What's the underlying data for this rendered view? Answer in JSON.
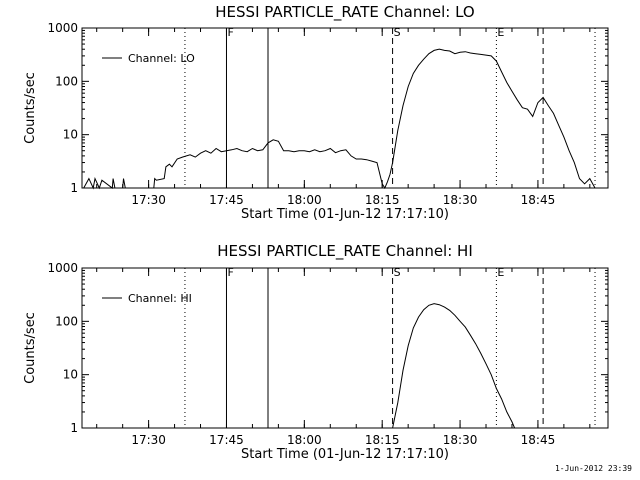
{
  "chart_data": [
    {
      "type": "line",
      "title": "HESSI PARTICLE_RATE Channel: LO",
      "xlabel": "Start Time (01-Jun-12 17:17:10)",
      "ylabel": "Counts/sec",
      "yscale": "log",
      "ylim": [
        1,
        1000
      ],
      "xlim": [
        "17:17:10",
        "18:58:30"
      ],
      "x_ticks": [
        "17:30",
        "17:45",
        "18:00",
        "18:15",
        "18:30",
        "18:45"
      ],
      "y_ticks": [
        "1",
        "10",
        "100",
        "1000"
      ],
      "legend": {
        "placement": "top-left",
        "entries": [
          "Channel: LO"
        ]
      },
      "markers": [
        {
          "label": "",
          "time": "17:37:00",
          "style": "dotted"
        },
        {
          "label": "F",
          "time": "17:45:00",
          "style": "solid"
        },
        {
          "label": "",
          "time": "17:53:00",
          "style": "solid"
        },
        {
          "label": "S",
          "time": "18:17:00",
          "style": "dashed"
        },
        {
          "label": "E",
          "time": "18:37:00",
          "style": "dotted"
        },
        {
          "label": "",
          "time": "18:46:00",
          "style": "dashed"
        },
        {
          "label": "",
          "time": "18:56:00",
          "style": "dotted"
        }
      ],
      "series": [
        {
          "name": "Channel: LO",
          "x": [
            "17:17:30",
            "17:18:30",
            "17:19:20",
            "17:19:40",
            "17:20:30",
            "17:21:00",
            "17:23:00",
            "17:23:10",
            "17:23:30",
            "17:25:00",
            "17:25:10",
            "17:25:30",
            "17:31:00",
            "17:31:10",
            "17:31:30",
            "17:33:00",
            "17:33:20",
            "17:34:00",
            "17:34:30",
            "17:35:30",
            "17:36:30",
            "17:38:00",
            "17:39:00",
            "17:40:00",
            "17:41:00",
            "17:42:00",
            "17:43:00",
            "17:44:00",
            "17:45:00",
            "17:46:00",
            "17:47:00",
            "17:48:00",
            "17:49:00",
            "17:50:00",
            "17:51:00",
            "17:52:00",
            "17:53:00",
            "17:54:00",
            "17:55:00",
            "17:56:00",
            "17:57:00",
            "17:58:00",
            "17:59:00",
            "18:00:00",
            "18:01:00",
            "18:02:00",
            "18:03:00",
            "18:04:00",
            "18:05:00",
            "18:06:00",
            "18:07:00",
            "18:08:00",
            "18:09:00",
            "18:10:00",
            "18:11:00",
            "18:12:00",
            "18:13:00",
            "18:14:00",
            "18:15:00",
            "18:15:30",
            "18:16:00",
            "18:16:30",
            "18:17:00",
            "18:18:00",
            "18:19:00",
            "18:20:00",
            "18:21:00",
            "18:22:00",
            "18:23:00",
            "18:24:00",
            "18:25:00",
            "18:26:00",
            "18:27:00",
            "18:28:00",
            "18:29:00",
            "18:30:00",
            "18:31:00",
            "18:32:00",
            "18:33:00",
            "18:34:00",
            "18:35:00",
            "18:36:00",
            "18:37:00",
            "18:38:00",
            "18:39:00",
            "18:40:00",
            "18:41:00",
            "18:42:00",
            "18:43:00",
            "18:44:00",
            "18:45:00",
            "18:46:00",
            "18:47:00",
            "18:48:00",
            "18:49:00",
            "18:50:00",
            "18:51:00",
            "18:52:00",
            "18:53:00",
            "18:54:00",
            "18:55:00",
            "18:56:00",
            "18:57:00"
          ],
          "y": [
            1,
            1.5,
            1,
            1.5,
            1,
            1.4,
            1,
            1.5,
            1,
            1,
            1.5,
            1,
            1,
            1.5,
            1.4,
            1.5,
            2.5,
            2.8,
            2.5,
            3.5,
            3.8,
            4.2,
            3.8,
            4.5,
            5,
            4.5,
            5.5,
            4.8,
            5,
            5.2,
            5.5,
            5,
            4.8,
            5.5,
            5,
            5.2,
            7,
            8,
            7.5,
            5,
            5,
            4.8,
            5,
            5,
            4.8,
            5.2,
            4.8,
            5,
            5.5,
            4.6,
            5,
            5.2,
            4,
            3.5,
            3.5,
            3.4,
            3.2,
            3,
            1.2,
            1,
            1.3,
            1.8,
            3,
            12,
            35,
            80,
            140,
            200,
            260,
            330,
            380,
            400,
            380,
            370,
            330,
            350,
            360,
            340,
            330,
            320,
            310,
            300,
            240,
            150,
            95,
            65,
            45,
            32,
            30,
            22,
            40,
            50,
            35,
            25,
            15,
            9,
            5,
            3,
            1.5,
            1.2,
            1.5,
            1,
            1
          ]
        }
      ]
    },
    {
      "type": "line",
      "title": "HESSI PARTICLE_RATE Channel: HI",
      "xlabel": "Start Time (01-Jun-12 17:17:10)",
      "ylabel": "Counts/sec",
      "yscale": "log",
      "ylim": [
        1,
        1000
      ],
      "xlim": [
        "17:17:10",
        "18:58:30"
      ],
      "x_ticks": [
        "17:30",
        "17:45",
        "18:00",
        "18:15",
        "18:30",
        "18:45"
      ],
      "y_ticks": [
        "1",
        "10",
        "100",
        "1000"
      ],
      "legend": {
        "placement": "top-left",
        "entries": [
          "Channel: HI"
        ]
      },
      "markers": [
        {
          "label": "",
          "time": "17:37:00",
          "style": "dotted"
        },
        {
          "label": "F",
          "time": "17:45:00",
          "style": "solid"
        },
        {
          "label": "",
          "time": "17:53:00",
          "style": "solid"
        },
        {
          "label": "S",
          "time": "18:17:00",
          "style": "dashed"
        },
        {
          "label": "E",
          "time": "18:37:00",
          "style": "dotted"
        },
        {
          "label": "",
          "time": "18:46:00",
          "style": "dashed"
        },
        {
          "label": "",
          "time": "18:56:00",
          "style": "dotted"
        }
      ],
      "series": [
        {
          "name": "Channel: HI",
          "x": [
            "18:17:00",
            "18:18:00",
            "18:19:00",
            "18:20:00",
            "18:21:00",
            "18:22:00",
            "18:23:00",
            "18:24:00",
            "18:25:00",
            "18:26:00",
            "18:27:00",
            "18:28:00",
            "18:29:00",
            "18:30:00",
            "18:31:00",
            "18:32:00",
            "18:33:00",
            "18:34:00",
            "18:35:00",
            "18:36:00",
            "18:37:00",
            "18:38:00",
            "18:39:00",
            "18:40:00",
            "18:40:30"
          ],
          "y": [
            1,
            3,
            12,
            35,
            75,
            120,
            165,
            200,
            215,
            205,
            185,
            160,
            130,
            100,
            78,
            55,
            38,
            25,
            16,
            10,
            5.5,
            3.5,
            2,
            1.3,
            1
          ]
        }
      ]
    }
  ],
  "timestamp": "1-Jun-2012 23:39"
}
